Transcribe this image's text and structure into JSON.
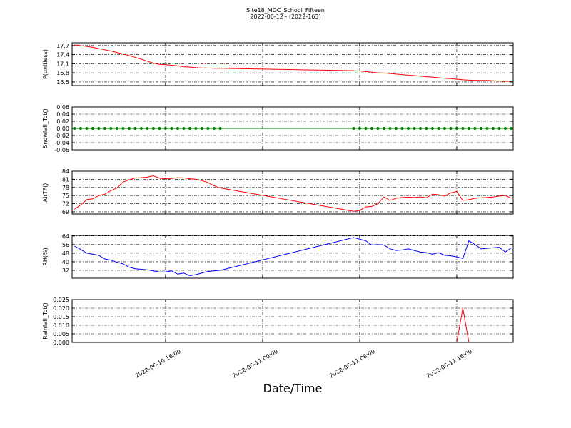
{
  "figure": {
    "title": "Site18_MDC_School_Fifteen",
    "subtitle": "2022-06-12 - (2022-163)",
    "xlabel": "Date/Time",
    "xlim": [
      "2022-06-10 08:18",
      "2022-06-11 20:39"
    ],
    "xticks": [
      "2022-06-10 16:00",
      "2022-06-11 00:00",
      "2022-06-11 08:00",
      "2022-06-11 16:00"
    ],
    "x": [
      "2022-06-10 08:30",
      "2022-06-10 09:00",
      "2022-06-10 09:30",
      "2022-06-10 10:00",
      "2022-06-10 10:30",
      "2022-06-10 11:00",
      "2022-06-10 11:30",
      "2022-06-10 12:00",
      "2022-06-10 12:30",
      "2022-06-10 13:00",
      "2022-06-10 13:30",
      "2022-06-10 14:00",
      "2022-06-10 14:30",
      "2022-06-10 15:00",
      "2022-06-10 15:30",
      "2022-06-10 16:00",
      "2022-06-10 16:30",
      "2022-06-10 17:00",
      "2022-06-10 17:30",
      "2022-06-10 18:00",
      "2022-06-10 18:30",
      "2022-06-10 19:00",
      "2022-06-10 19:30",
      "2022-06-10 20:00",
      "2022-06-10 20:30",
      "2022-06-11 07:30",
      "2022-06-11 08:00",
      "2022-06-11 08:30",
      "2022-06-11 09:00",
      "2022-06-11 09:30",
      "2022-06-11 10:00",
      "2022-06-11 10:30",
      "2022-06-11 11:00",
      "2022-06-11 11:30",
      "2022-06-11 12:00",
      "2022-06-11 12:30",
      "2022-06-11 13:00",
      "2022-06-11 13:30",
      "2022-06-11 14:00",
      "2022-06-11 14:30",
      "2022-06-11 15:00",
      "2022-06-11 15:30",
      "2022-06-11 16:00",
      "2022-06-11 16:30",
      "2022-06-11 17:00",
      "2022-06-11 17:30",
      "2022-06-11 18:00",
      "2022-06-11 18:30",
      "2022-06-11 19:00",
      "2022-06-11 19:30",
      "2022-06-11 20:00",
      "2022-06-11 20:30"
    ]
  },
  "chart_data": [
    {
      "type": "line",
      "ylabel": "P(unitless)",
      "ylim": [
        16.38,
        17.79
      ],
      "yticks": [
        16.5,
        16.8,
        17.1,
        17.4,
        17.7
      ],
      "grid": true,
      "series": [
        {
          "color": "#ff0000",
          "marker": false,
          "values": [
            17.72,
            17.7,
            17.67,
            17.64,
            17.6,
            17.56,
            17.52,
            17.47,
            17.42,
            17.37,
            17.31,
            17.25,
            17.18,
            17.12,
            17.08,
            17.07,
            17.05,
            17.03,
            17.0,
            16.99,
            16.97,
            16.96,
            16.96,
            16.95,
            16.95,
            16.87,
            16.86,
            16.84,
            16.82,
            16.8,
            16.79,
            16.78,
            16.76,
            16.74,
            16.72,
            16.71,
            16.69,
            16.67,
            16.66,
            16.64,
            16.62,
            16.61,
            16.59,
            16.57,
            16.56,
            16.55,
            16.55,
            16.55,
            16.54,
            16.53,
            16.52,
            16.52
          ]
        }
      ]
    },
    {
      "type": "line",
      "ylabel": "Snowfall_Tot()",
      "ylim": [
        -0.06,
        0.06
      ],
      "yticks": [
        -0.06,
        -0.04,
        -0.02,
        {
          "value": 0,
          "label": "0.00"
        },
        0.02,
        0.04,
        0.06
      ],
      "grid": true,
      "series": [
        {
          "color": "#008000",
          "marker": true,
          "values": [
            0,
            0,
            0,
            0,
            0,
            0,
            0,
            0,
            0,
            0,
            0,
            0,
            0,
            0,
            0,
            0,
            0,
            0,
            0,
            0,
            0,
            0,
            0,
            0,
            0,
            0,
            0,
            0,
            0,
            0,
            0,
            0,
            0,
            0,
            0,
            0,
            0,
            0,
            0,
            0,
            0,
            0,
            0,
            0,
            0,
            0,
            0,
            0,
            0,
            0,
            0,
            0
          ]
        }
      ]
    },
    {
      "type": "line",
      "ylabel": "AirTF()",
      "ylim": [
        68.2,
        84
      ],
      "yticks": [
        69,
        72,
        75,
        78,
        81,
        84
      ],
      "grid": true,
      "series": [
        {
          "color": "#ff0000",
          "marker": false,
          "values": [
            70.0,
            71.5,
            73.5,
            73.8,
            75.0,
            75.5,
            76.8,
            77.8,
            80.0,
            80.8,
            81.5,
            81.6,
            81.8,
            82.3,
            81.4,
            81.2,
            81.3,
            81.6,
            81.5,
            81.2,
            81.0,
            80.5,
            79.8,
            78.6,
            77.8,
            69.2,
            69.5,
            70.8,
            71.0,
            72.0,
            74.5,
            73.2,
            74.0,
            74.3,
            74.4,
            74.3,
            74.5,
            74.2,
            75.5,
            75.3,
            74.8,
            76.0,
            76.5,
            73.2,
            73.5,
            74.0,
            74.2,
            74.3,
            74.5,
            74.8,
            75.0,
            74.0
          ]
        }
      ]
    },
    {
      "type": "line",
      "ylabel": "RH(%)",
      "ylim": [
        24.7,
        64.5
      ],
      "yticks": [
        32,
        40,
        48,
        56,
        64
      ],
      "grid": true,
      "series": [
        {
          "color": "#0000ff",
          "marker": false,
          "values": [
            54.5,
            51.5,
            48.0,
            47.0,
            46.0,
            42.5,
            41.5,
            39.5,
            38.0,
            35.0,
            33.5,
            33.0,
            32.5,
            31.5,
            30.5,
            30.5,
            31.5,
            28.5,
            29.5,
            27.0,
            28.0,
            29.5,
            31.0,
            31.5,
            32.0,
            62.5,
            61.0,
            59.5,
            55.5,
            56.0,
            55.5,
            52.0,
            50.5,
            51.0,
            52.0,
            50.5,
            49.0,
            48.5,
            47.0,
            48.5,
            46.0,
            45.5,
            44.5,
            43.0,
            59.5,
            56.0,
            52.0,
            52.5,
            53.0,
            53.5,
            49.0,
            53.0
          ]
        }
      ]
    },
    {
      "type": "line",
      "ylabel": "Rainfall_Tot()",
      "ylim": [
        0,
        0.025
      ],
      "yticks": [
        {
          "value": 0,
          "label": "0.000"
        },
        0.005,
        {
          "value": 0.01,
          "label": "0.010"
        },
        0.015,
        {
          "value": 0.02,
          "label": "0.020"
        },
        0.025
      ],
      "grid": true,
      "series": [
        {
          "color": "#ff0000",
          "marker": false,
          "values": [
            0,
            0,
            0,
            0,
            0,
            0,
            0,
            0,
            0,
            0,
            0,
            0,
            0,
            0,
            0,
            0,
            0,
            0,
            0,
            0,
            0,
            0,
            0,
            0,
            0,
            0,
            0,
            0,
            0,
            0,
            0,
            0,
            0,
            0,
            0,
            0,
            0,
            0,
            0,
            0,
            0,
            0,
            0,
            0.02,
            0,
            0,
            0,
            0,
            0,
            0,
            0,
            0
          ]
        }
      ]
    }
  ]
}
